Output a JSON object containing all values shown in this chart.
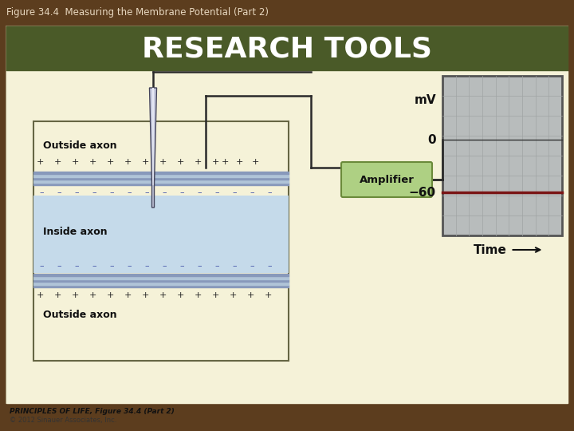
{
  "title": "Figure 34.4  Measuring the Membrane Potential (Part 2)",
  "title_bg": "#5c3d1e",
  "title_fg": "#e8d8c0",
  "header_text": "RESEARCH TOOLS",
  "header_bg": "#4a5a28",
  "header_fg": "#ffffff",
  "content_bg": "#f5f2d8",
  "outer_border": "#8b7d5a",
  "axon_bg": "#f5f2d8",
  "axon_border": "#666644",
  "inside_bg": "#c5daea",
  "membrane_dark": "#8899bb",
  "membrane_light": "#b0c4d8",
  "plus_color": "#222222",
  "minus_color": "#4455aa",
  "wire_color": "#2a2a2a",
  "needle_fill": "#c8cce0",
  "needle_outline": "#44445a",
  "amp_bg": "#aed083",
  "amp_border": "#6a8a3a",
  "amp_text": "Amplifier",
  "graph_bg": "#b8bcbc",
  "graph_border": "#555555",
  "graph_grid": "#a0a4a4",
  "graph_line": "#7a1515",
  "outside_label": "Outside axon",
  "inside_label": "Inside axon",
  "mv_label": "mV",
  "zero_label": "0",
  "minus60_label": "−60",
  "time_label": "Time",
  "footer1": "PRINCIPLES OF LIFE, Figure 34.4 (Part 2)",
  "footer2": "© 2012 Sinauer Associates, Inc."
}
